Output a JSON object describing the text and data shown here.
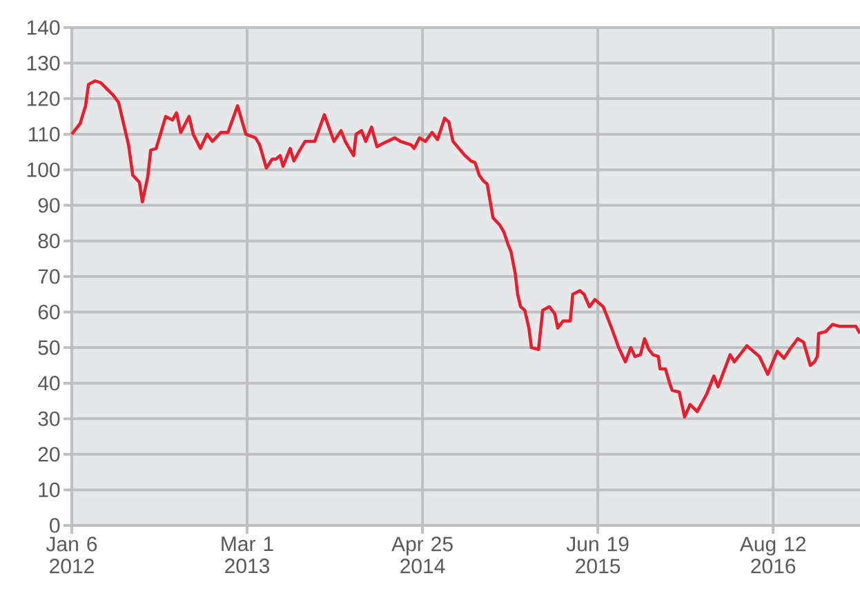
{
  "chart_data": {
    "type": "line",
    "x": [
      "2012-01-06",
      "2012-01-26",
      "2012-02-08",
      "2012-02-15",
      "2012-03-02",
      "2012-03-15",
      "2012-04-14",
      "2012-04-27",
      "2012-05-07",
      "2012-05-21",
      "2012-05-31",
      "2012-06-16",
      "2012-06-23",
      "2012-07-06",
      "2012-07-13",
      "2012-07-26",
      "2012-08-18",
      "2012-09-03",
      "2012-09-13",
      "2012-09-23",
      "2012-10-13",
      "2012-10-23",
      "2012-11-09",
      "2012-11-25",
      "2012-12-08",
      "2012-12-28",
      "2013-01-14",
      "2013-02-06",
      "2013-02-26",
      "2013-03-21",
      "2013-03-31",
      "2013-04-16",
      "2013-04-30",
      "2013-05-09",
      "2013-05-19",
      "2013-05-26",
      "2013-06-12",
      "2013-06-21",
      "2013-07-05",
      "2013-07-18",
      "2013-08-10",
      "2013-09-02",
      "2013-09-25",
      "2013-10-12",
      "2013-10-22",
      "2013-11-11",
      "2013-11-17",
      "2013-11-30",
      "2013-12-10",
      "2013-12-24",
      "2014-01-06",
      "2014-01-22",
      "2014-02-18",
      "2014-03-03",
      "2014-03-29",
      "2014-04-05",
      "2014-04-18",
      "2014-05-02",
      "2014-05-18",
      "2014-05-31",
      "2014-06-17",
      "2014-06-27",
      "2014-07-07",
      "2014-08-05",
      "2014-08-19",
      "2014-08-29",
      "2014-09-08",
      "2014-09-17",
      "2014-09-27",
      "2014-10-11",
      "2014-10-27",
      "2014-11-06",
      "2014-11-16",
      "2014-11-23",
      "2014-12-03",
      "2014-12-09",
      "2014-12-16",
      "2014-12-26",
      "2015-01-05",
      "2015-01-11",
      "2015-01-28",
      "2015-02-07",
      "2015-02-23",
      "2015-03-08",
      "2015-03-15",
      "2015-03-28",
      "2015-04-14",
      "2015-04-20",
      "2015-05-07",
      "2015-05-17",
      "2015-05-30",
      "2015-06-12",
      "2015-07-02",
      "2015-07-12",
      "2015-07-22",
      "2015-08-08",
      "2015-08-24",
      "2015-09-06",
      "2015-09-16",
      "2015-09-29",
      "2015-10-09",
      "2015-10-19",
      "2015-10-29",
      "2015-11-11",
      "2015-11-15",
      "2015-11-28",
      "2015-12-08",
      "2015-12-14",
      "2015-12-31",
      "2016-01-13",
      "2016-01-26",
      "2016-02-12",
      "2016-03-06",
      "2016-03-23",
      "2016-04-02",
      "2016-04-18",
      "2016-05-01",
      "2016-05-11",
      "2016-06-10",
      "2016-07-10",
      "2016-07-30",
      "2016-08-22",
      "2016-09-07",
      "2016-09-21",
      "2016-10-10",
      "2016-10-24",
      "2016-11-09",
      "2016-11-19",
      "2016-11-26",
      "2016-11-29",
      "2016-12-16",
      "2017-01-01",
      "2017-01-18",
      "2017-02-10",
      "2017-02-26",
      "2017-03-08"
    ],
    "values": [
      110,
      113,
      118,
      124,
      125,
      124.5,
      121,
      119,
      114,
      107,
      98.5,
      96.5,
      91,
      98,
      105.5,
      106,
      115,
      114,
      116,
      110.5,
      115,
      110,
      106,
      110,
      108,
      110.5,
      110.5,
      118,
      110,
      109,
      107,
      100.5,
      103,
      103,
      104,
      101,
      106,
      102.5,
      105.5,
      108,
      108,
      115.5,
      108,
      111,
      108,
      104,
      110,
      111,
      108,
      112,
      106.5,
      107.5,
      109,
      108,
      107,
      106,
      109,
      108,
      110.5,
      108.5,
      114.5,
      113.5,
      108,
      104,
      102.5,
      102,
      98.5,
      97,
      96,
      86.5,
      84.5,
      82.5,
      79,
      77,
      71,
      65,
      61.5,
      60.5,
      55.5,
      50,
      49.5,
      60.5,
      61.5,
      59.5,
      55.5,
      57.5,
      57.5,
      65,
      66,
      65,
      61.5,
      63.5,
      61.5,
      58.5,
      55.5,
      50,
      46,
      50,
      47.5,
      48,
      52.5,
      49.5,
      48,
      47.5,
      44,
      44,
      40,
      38,
      37.5,
      30.5,
      34,
      32,
      37,
      42,
      39,
      44,
      48,
      46,
      50.5,
      47.5,
      42.5,
      49,
      47,
      49.5,
      52.5,
      51.5,
      45,
      46,
      47.5,
      54,
      54.5,
      56.5,
      56,
      56,
      56,
      54
    ],
    "color": "#e2202f",
    "xlim": [
      "2012-01-06",
      "2017-03-08"
    ],
    "xticks": [
      {
        "value": "2012-01-06",
        "label": "Jan 6 2012"
      },
      {
        "value": "2013-03-01",
        "label": "Mar 1 2013"
      },
      {
        "value": "2014-04-25",
        "label": "Apr 25 2014"
      },
      {
        "value": "2015-06-19",
        "label": "Jun 19 2015"
      },
      {
        "value": "2016-08-12",
        "label": "Aug 12 2016"
      }
    ],
    "ylim": [
      0,
      140
    ],
    "yticks": [
      0,
      10,
      20,
      30,
      40,
      50,
      60,
      70,
      80,
      90,
      100,
      110,
      120,
      130,
      140
    ],
    "grid": true
  }
}
